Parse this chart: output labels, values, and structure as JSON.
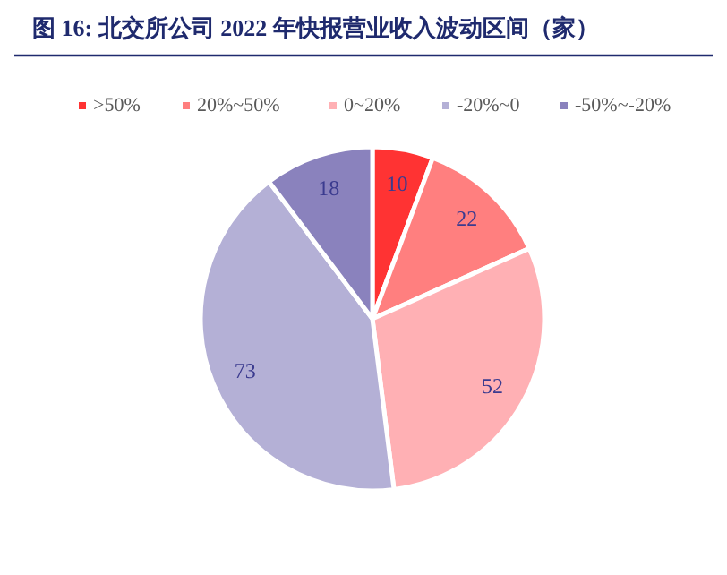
{
  "chart_data": {
    "type": "pie",
    "title": "图 16:  北交所公司 2022 年快报营业收入波动区间（家）",
    "categories": [
      ">50%",
      "20%~50%",
      "0~20%",
      "-20%~0",
      "-50%~-20%"
    ],
    "values": [
      10,
      22,
      52,
      73,
      18
    ],
    "colors": [
      "#ff3333",
      "#ff7f7f",
      "#ffb0b4",
      "#b4b0d6",
      "#8a82bd"
    ],
    "data_labels": true,
    "legend": "top"
  }
}
